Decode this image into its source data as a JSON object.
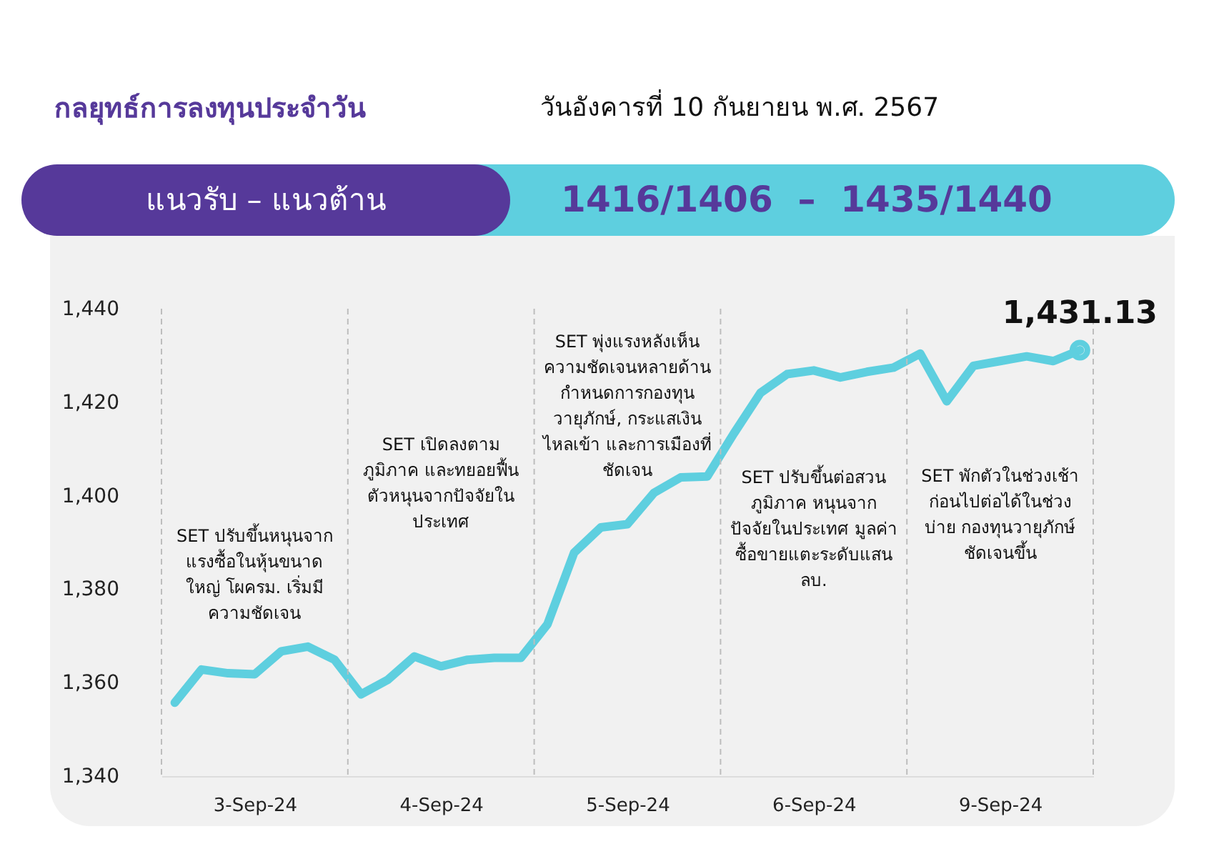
{
  "chart_data": {
    "type": "line",
    "title": "กลยุทธ์การลงทุนประจำวัน",
    "subtitle": "วันอังคารที่ 10 กันยายน พ.ศ. 2567",
    "annotations": [
      "แนวรับ – แนวต้าน",
      "1416/1406  –  1435/1440",
      "SET ปรับขึ้นหนุนจาก\nแรงซื้อในหุ้นขนาด\nใหญ่ โผครม. เริ่มมี\nความชัดเจน",
      "SET เปิดลงตาม\nภูมิภาค และทยอยฟื้น\nตัวหนุนจากปัจจัยใน\nประเทศ",
      "SET พุ่งแรงหลังเห็น\nความชัดเจนหลายด้าน\nกำหนดการกองทุน\nวายุภักษ์, กระแสเงิน\nไหลเข้า และการเมืองที่\nชัดเจน",
      "SET ปรับขึ้นต่อสวน\nภูมิภาค หนุนจาก\nปัจจัยในประเทศ มูลค่า\nซื้อขายแตะระดับแสน\nลบ.",
      "SET พักตัวในช่วงเช้า\nก่อนไปต่อได้ในช่วง\nบ่าย กองทุนวายุภักษ์\nชัดเจนขึ้น"
    ],
    "categories": [
      null,
      null,
      null,
      "3-Sep-24",
      null,
      null,
      null,
      null,
      null,
      null,
      "4-Sep-24",
      null,
      null,
      null,
      null,
      null,
      null,
      "5-Sep-24",
      null,
      null,
      null,
      null,
      null,
      null,
      "6-Sep-24",
      null,
      null,
      null,
      null,
      null,
      null,
      "9-Sep-24",
      null,
      null,
      null
    ],
    "series": [
      {
        "color": "#5ecfdf",
        "values": [
          1355.7,
          1362.8,
          1362.0,
          1361.8,
          1366.7,
          1367.7,
          1364.9,
          1357.5,
          1360.6,
          1365.6,
          1363.5,
          1364.9,
          1365.3,
          1365.3,
          1372.5,
          1387.8,
          1393.2,
          1393.9,
          1400.6,
          1403.9,
          1404.1,
          1413.3,
          1422.0,
          1426.0,
          1426.8,
          1425.3,
          1426.5,
          1427.4,
          1430.4,
          1420.2,
          1427.8,
          1428.8,
          1429.8,
          1428.8,
          1431.13
        ],
        "value_labels": [
          null,
          null,
          null,
          null,
          null,
          null,
          null,
          null,
          null,
          null,
          null,
          null,
          null,
          null,
          null,
          null,
          null,
          null,
          null,
          null,
          null,
          null,
          null,
          null,
          null,
          null,
          null,
          null,
          null,
          null,
          null,
          null,
          null,
          null,
          "1,431.13"
        ]
      }
    ],
    "ylim": [
      1340,
      1440
    ],
    "yticks": [
      {
        "value": 1340,
        "label": "1,340"
      },
      {
        "value": 1360,
        "label": "1,360"
      },
      {
        "value": 1380,
        "label": "1,380"
      },
      {
        "value": 1400,
        "label": "1,400"
      },
      {
        "value": 1420,
        "label": "1,420"
      },
      {
        "value": 1440,
        "label": "1,440"
      }
    ],
    "grid": "x",
    "line_style": "solid"
  }
}
